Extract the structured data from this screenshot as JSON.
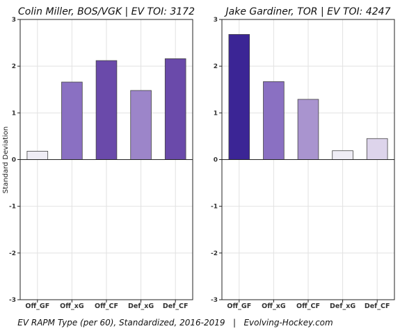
{
  "caption": "EV RAPM Type (per 60), Standardized, 2016-2019   |   Evolving-Hockey.com",
  "ylabel": "Standard Deviation",
  "chart_data": [
    {
      "type": "bar",
      "title": "Colin Miller, BOS/VGK  |  EV TOI: 3172",
      "categories": [
        "Off_GF",
        "Off_xG",
        "Off_CF",
        "Def_xG",
        "Def_CF"
      ],
      "values": [
        0.18,
        1.66,
        2.12,
        1.48,
        2.16
      ],
      "colors": [
        "#efedf5",
        "#8a70c2",
        "#6a4aaa",
        "#9c85c9",
        "#6a4aaa"
      ],
      "ylim": [
        -3,
        3
      ],
      "yticks": [
        -3,
        -2,
        -1,
        0,
        1,
        2,
        3
      ],
      "ytick_labels": [
        "-3",
        "-2",
        "-1",
        "0",
        "1",
        "2",
        "3"
      ],
      "ylabel": "Standard Deviation",
      "grid": true
    },
    {
      "type": "bar",
      "title": "Jake Gardiner, TOR  |  EV TOI: 4247",
      "categories": [
        "Off_GF",
        "Off_xG",
        "Off_CF",
        "Def_xG",
        "Def_CF"
      ],
      "values": [
        2.68,
        1.67,
        1.29,
        0.19,
        0.45
      ],
      "colors": [
        "#3b2595",
        "#8a70c2",
        "#a994cf",
        "#efedf5",
        "#ddd4eb"
      ],
      "ylim": [
        -3,
        3
      ],
      "yticks": [
        -3,
        -2,
        -1,
        0,
        1,
        2,
        3
      ],
      "ytick_labels": [
        "-3",
        "-2",
        "-1",
        "0",
        "1",
        "2",
        "3"
      ],
      "grid": true
    }
  ]
}
